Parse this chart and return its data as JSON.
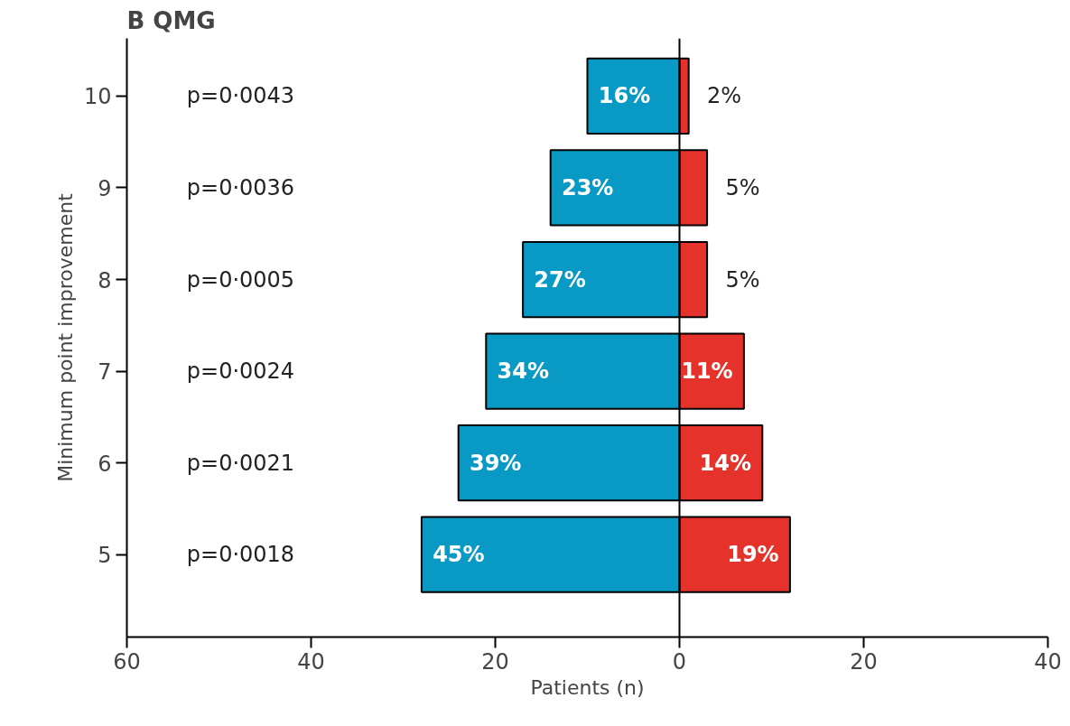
{
  "chart_data": {
    "type": "bar",
    "orientation": "horizontal",
    "stacked": true,
    "title": "B QMG",
    "xlabel": "Patients (n)",
    "ylabel": "Minimum point improvement",
    "categories": [
      "10",
      "9",
      "8",
      "7",
      "6",
      "5"
    ],
    "series": [
      {
        "color": "#0899c4",
        "values": [
          -10,
          -14,
          -17,
          -21,
          -24,
          -28
        ]
      },
      {
        "color": "#e5322a",
        "values": [
          1,
          3,
          3,
          7,
          9,
          12
        ]
      }
    ],
    "xlim": [
      -60,
      40
    ],
    "xticks": [
      {
        "value": -60,
        "label": "60"
      },
      {
        "value": -40,
        "label": "40"
      },
      {
        "value": -20,
        "label": "20"
      },
      0,
      20,
      40
    ],
    "ref_lines": [
      {
        "axis": "x",
        "value": 0
      }
    ],
    "annotations": [
      "p=0·0043",
      "p=0·0036",
      "p=0·0005",
      "p=0·0024",
      "p=0·0021",
      "p=0·0018",
      {
        "text": "16%",
        "x": -10,
        "y": "10"
      },
      {
        "text": "23%",
        "x": -14,
        "y": "9"
      },
      {
        "text": "27%",
        "x": -17,
        "y": "8"
      },
      {
        "text": "34%",
        "x": -21,
        "y": "7"
      },
      {
        "text": "39%",
        "x": -24,
        "y": "6"
      },
      {
        "text": "45%",
        "x": -28,
        "y": "5"
      },
      {
        "text": "2%",
        "x": 1,
        "y": "10"
      },
      {
        "text": "5%",
        "x": 3,
        "y": "9"
      },
      {
        "text": "5%",
        "x": 3,
        "y": "8"
      },
      {
        "text": "11%",
        "x": 7,
        "y": "7"
      },
      {
        "text": "14%",
        "x": 9,
        "y": "6"
      },
      {
        "text": "19%",
        "x": 12,
        "y": "5"
      }
    ],
    "grid": false
  }
}
